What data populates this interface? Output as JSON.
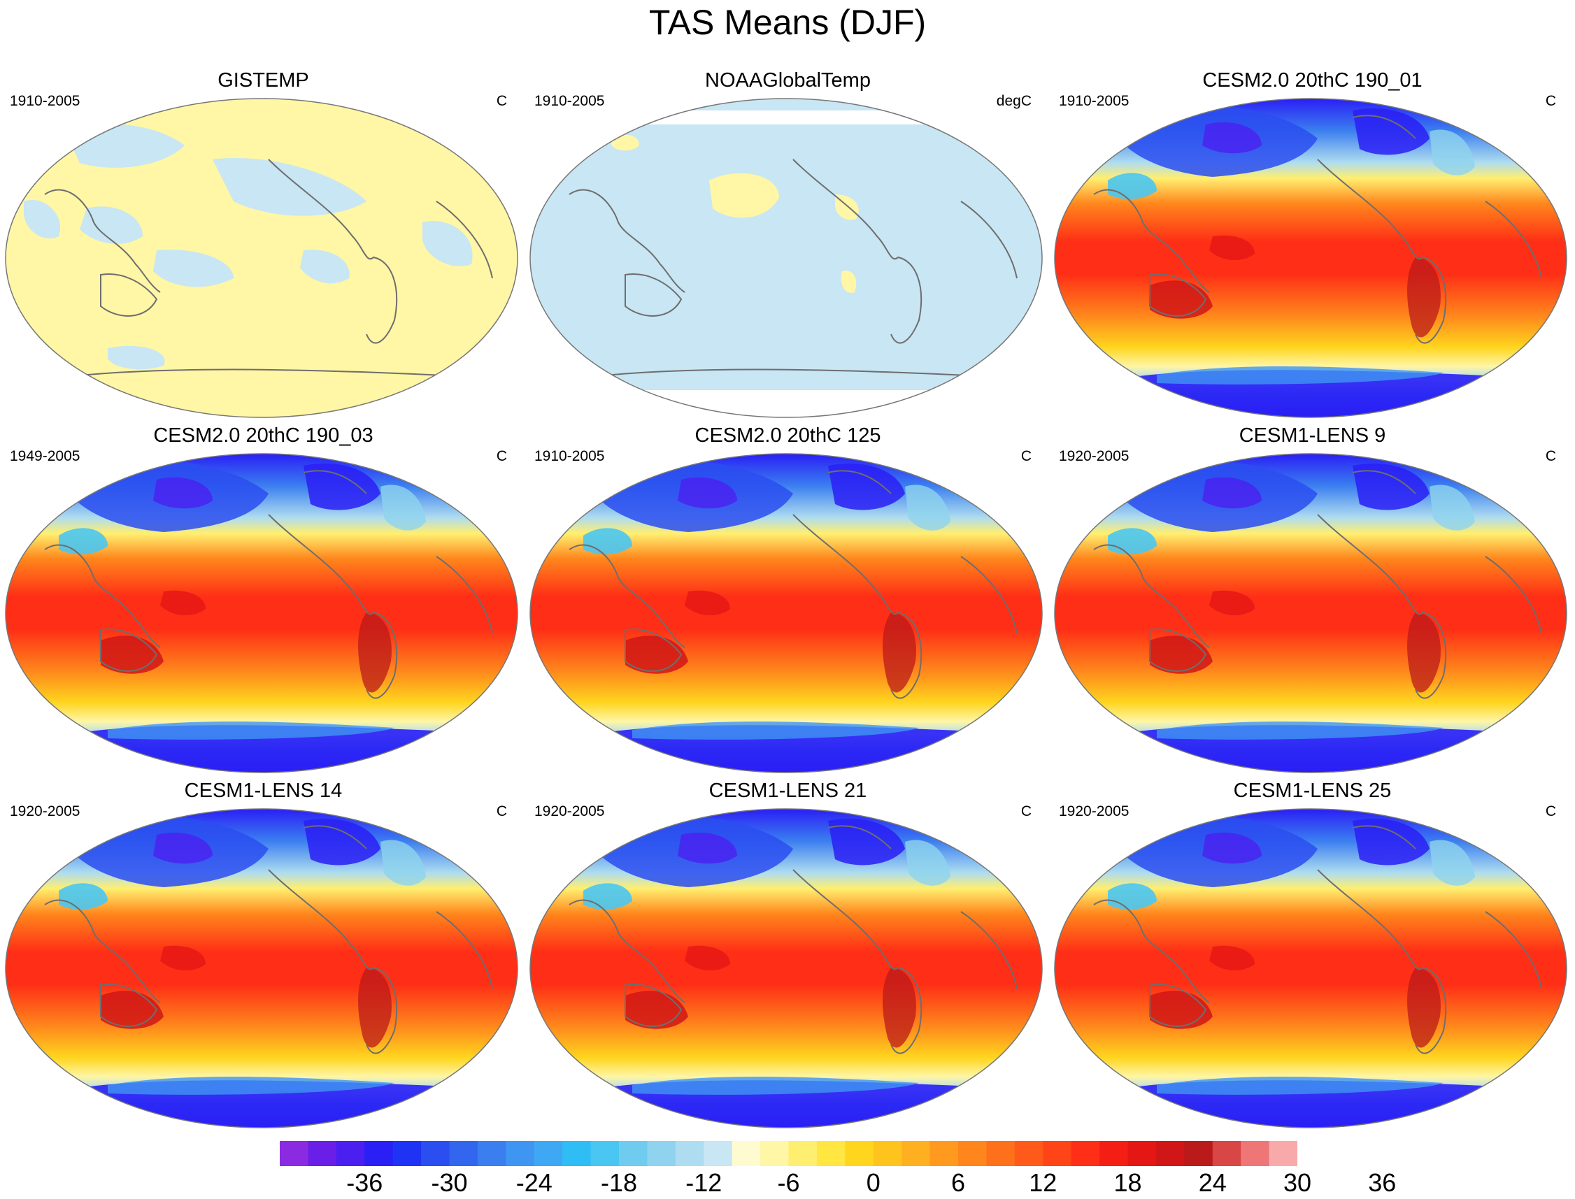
{
  "title": "TAS Means (DJF)",
  "panels": [
    {
      "title": "GISTEMP",
      "years": "1910-2005",
      "units": "C",
      "style": "obs_warm"
    },
    {
      "title": "NOAAGlobalTemp",
      "years": "1910-2005",
      "units": "degC",
      "style": "obs_cool"
    },
    {
      "title": "CESM2.0 20thC 190_01",
      "years": "1910-2005",
      "units": "C",
      "style": "model"
    },
    {
      "title": "CESM2.0 20thC 190_03",
      "years": "1949-2005",
      "units": "C",
      "style": "model"
    },
    {
      "title": "CESM2.0 20thC 125",
      "years": "1910-2005",
      "units": "C",
      "style": "model"
    },
    {
      "title": "CESM1-LENS 9",
      "years": "1920-2005",
      "units": "C",
      "style": "model"
    },
    {
      "title": "CESM1-LENS 14",
      "years": "1920-2005",
      "units": "C",
      "style": "model"
    },
    {
      "title": "CESM1-LENS 21",
      "years": "1920-2005",
      "units": "C",
      "style": "model"
    },
    {
      "title": "CESM1-LENS 25",
      "years": "1920-2005",
      "units": "C",
      "style": "model"
    }
  ],
  "colorbar": {
    "labels": [
      "-36",
      "-30",
      "-24",
      "-18",
      "-12",
      "-6",
      "0",
      "6",
      "12",
      "18",
      "24",
      "30",
      "36"
    ],
    "colors": [
      "#8a2be2",
      "#6a1fe8",
      "#4b1ff0",
      "#2a1ff5",
      "#1f33f5",
      "#2a4ef0",
      "#3366ee",
      "#3a7ef0",
      "#3f95f2",
      "#3fa8f4",
      "#2fbdf5",
      "#4ac6f2",
      "#70ccef",
      "#8fd3ee",
      "#aedcf0",
      "#c8e6f3",
      "#fffbd0",
      "#fff6a6",
      "#ffef70",
      "#ffe640",
      "#ffd51e",
      "#ffc31e",
      "#ffb020",
      "#ff9a1e",
      "#ff861c",
      "#ff701a",
      "#ff5a1a",
      "#ff4418",
      "#ff2e16",
      "#f51e14",
      "#e51714",
      "#d01616",
      "#bb1a1a",
      "#d84646",
      "#ee7676",
      "#f8aaaa"
    ]
  }
}
